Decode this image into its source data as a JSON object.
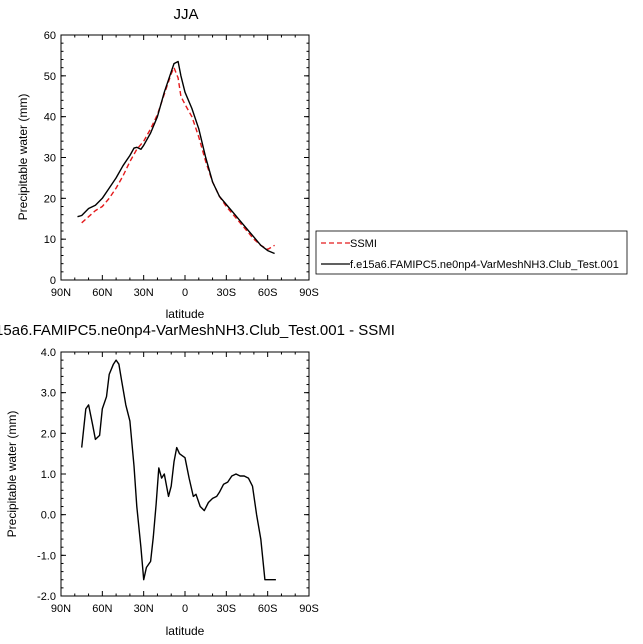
{
  "chart_data": [
    {
      "type": "line",
      "title": "JJA",
      "xlabel": "latitude",
      "ylabel": "Precipitable water (mm)",
      "xlim": [
        90,
        -90
      ],
      "ylim": [
        0,
        60
      ],
      "x_ticks": [
        90,
        60,
        30,
        0,
        -30,
        -60,
        -90
      ],
      "x_tick_labels": [
        "90N",
        "60N",
        "30N",
        "0",
        "30S",
        "60S",
        "90S"
      ],
      "y_ticks": [
        0,
        10,
        20,
        30,
        40,
        50,
        60
      ],
      "y_tick_labels": [
        "0",
        "10",
        "20",
        "30",
        "40",
        "50",
        "60"
      ],
      "legend_position": "right",
      "series": [
        {
          "name": "SSMI",
          "color": "#e41a1c",
          "style": "dashed",
          "x": [
            75,
            70,
            65,
            60,
            55,
            50,
            45,
            40,
            35,
            30,
            25,
            20,
            15,
            10,
            8,
            5,
            3,
            0,
            -5,
            -10,
            -15,
            -20,
            -25,
            -30,
            -35,
            -40,
            -45,
            -50,
            -55,
            -60,
            -65
          ],
          "y": [
            14,
            15.5,
            17,
            18,
            20,
            22.5,
            25.5,
            29,
            32,
            34,
            37,
            40.5,
            45.5,
            50.5,
            52,
            49.5,
            45,
            43,
            40,
            35,
            29,
            24,
            20.5,
            18,
            16,
            14,
            12,
            10,
            8.5,
            7.5,
            8.5
          ]
        },
        {
          "name": "f.e15a6.FAMIPC5.ne0np4-VarMeshNH3.Club_Test.001",
          "color": "#000000",
          "style": "solid",
          "x": [
            78,
            75,
            70,
            65,
            60,
            55,
            50,
            45,
            40,
            37,
            35,
            32,
            30,
            25,
            20,
            15,
            10,
            8,
            5,
            3,
            0,
            -5,
            -10,
            -15,
            -20,
            -25,
            -30,
            -35,
            -40,
            -45,
            -50,
            -55,
            -60,
            -65
          ],
          "y": [
            15.5,
            15.8,
            17.5,
            18.3,
            20,
            22.5,
            25,
            28,
            30.5,
            32.3,
            32.5,
            32,
            33,
            36,
            40,
            46,
            51,
            53,
            53.5,
            50,
            46,
            42,
            37,
            30,
            24,
            20.5,
            18.5,
            16.5,
            14.5,
            12.5,
            10.5,
            8.5,
            7.2,
            6.5
          ]
        }
      ]
    },
    {
      "type": "line",
      "title": "15a6.FAMIPC5.ne0np4-VarMeshNH3.Club_Test.001 - SSMI",
      "xlabel": "latitude",
      "ylabel": "Precipitable water (mm)",
      "xlim": [
        90,
        -90
      ],
      "ylim": [
        -2,
        4
      ],
      "x_ticks": [
        90,
        60,
        30,
        0,
        -30,
        -60,
        -90
      ],
      "x_tick_labels": [
        "90N",
        "60N",
        "30N",
        "0",
        "30S",
        "60S",
        "90S"
      ],
      "y_ticks": [
        -2,
        -1,
        0,
        1,
        2,
        3,
        4
      ],
      "y_tick_labels": [
        "-2.0",
        "-1.0",
        "0.0",
        "1.0",
        "2.0",
        "3.0",
        "4.0"
      ],
      "series": [
        {
          "color": "#000000",
          "style": "solid",
          "x": [
            75,
            72,
            70,
            67,
            65,
            62,
            60,
            57,
            55,
            52,
            50,
            48,
            46,
            43,
            40,
            37,
            35,
            32,
            30,
            28,
            25,
            23,
            21,
            19,
            17,
            15,
            12,
            10,
            8,
            6,
            4,
            2,
            0,
            -3,
            -6,
            -8,
            -11,
            -14,
            -17,
            -20,
            -23,
            -25,
            -28,
            -31,
            -34,
            -37,
            -40,
            -43,
            -46,
            -49,
            -52,
            -55,
            -58,
            -61,
            -64,
            -66
          ],
          "y": [
            1.65,
            2.6,
            2.7,
            2.2,
            1.85,
            1.95,
            2.6,
            2.9,
            3.45,
            3.7,
            3.8,
            3.7,
            3.3,
            2.7,
            2.3,
            1.2,
            0.2,
            -0.8,
            -1.6,
            -1.3,
            -1.15,
            -0.55,
            0.25,
            1.15,
            0.9,
            1.0,
            0.45,
            0.7,
            1.3,
            1.65,
            1.5,
            1.45,
            1.4,
            0.9,
            0.45,
            0.5,
            0.2,
            0.1,
            0.3,
            0.4,
            0.45,
            0.55,
            0.75,
            0.8,
            0.95,
            1.0,
            0.95,
            0.95,
            0.9,
            0.7,
            0.0,
            -0.6,
            -1.6,
            -1.6,
            -1.6,
            -1.6
          ]
        }
      ]
    }
  ]
}
